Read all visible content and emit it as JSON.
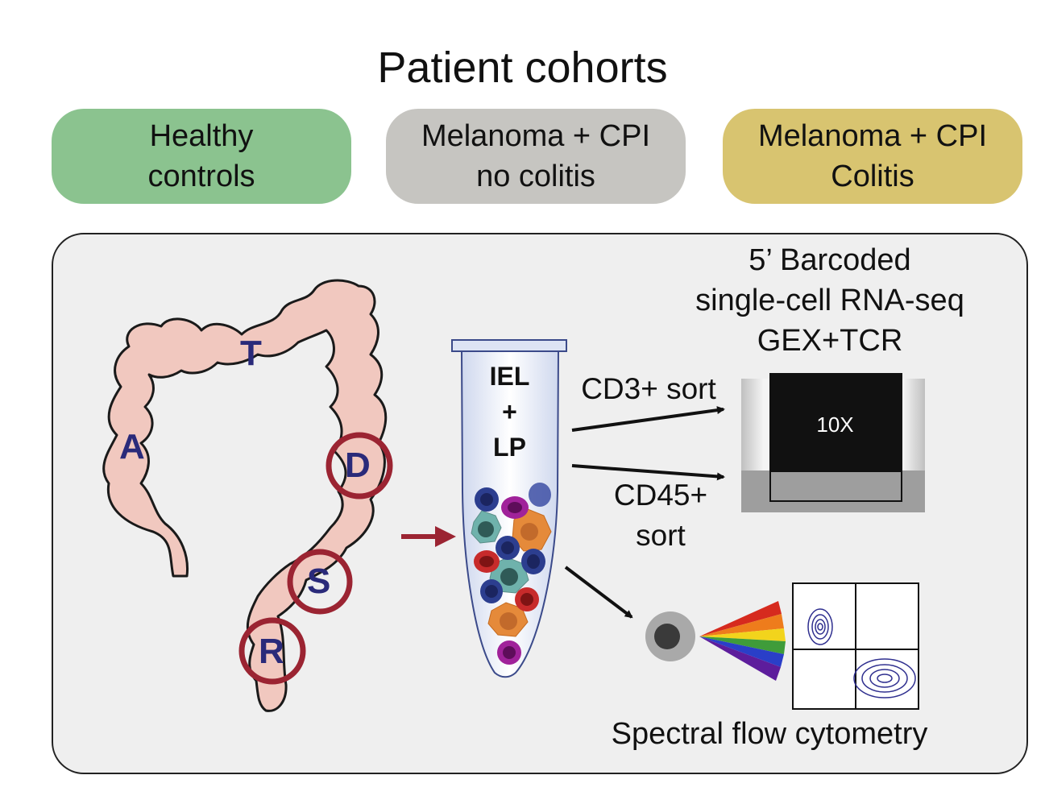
{
  "title": "Patient cohorts",
  "cohorts": [
    {
      "line1": "Healthy",
      "line2": "controls",
      "color": "#8bc38f"
    },
    {
      "line1": "Melanoma + CPI",
      "line2": "no colitis",
      "color": "#c6c5c1"
    },
    {
      "line1": "Melanoma + CPI",
      "line2": "Colitis",
      "color": "#d8c470"
    }
  ],
  "colon_segments": {
    "A": "A",
    "T": "T",
    "D": "D",
    "S": "S",
    "R": "R"
  },
  "tube": {
    "line1": "IEL",
    "line2": "+",
    "line3": "LP"
  },
  "sequencing": {
    "line1": "5’ Barcoded",
    "line2": "single-cell RNA-seq",
    "line3": "GEX+TCR",
    "chip_label": "10X"
  },
  "sorts": {
    "cd3": "CD3+ sort",
    "cd45_line1": "CD45+",
    "cd45_line2": "sort"
  },
  "flow_label": "Spectral flow cytometry",
  "colors": {
    "colon": "#f1c8bf",
    "biopsy_ring": "#9b2432",
    "segment_text": "#2a2a7a",
    "panel": "#efefef"
  }
}
